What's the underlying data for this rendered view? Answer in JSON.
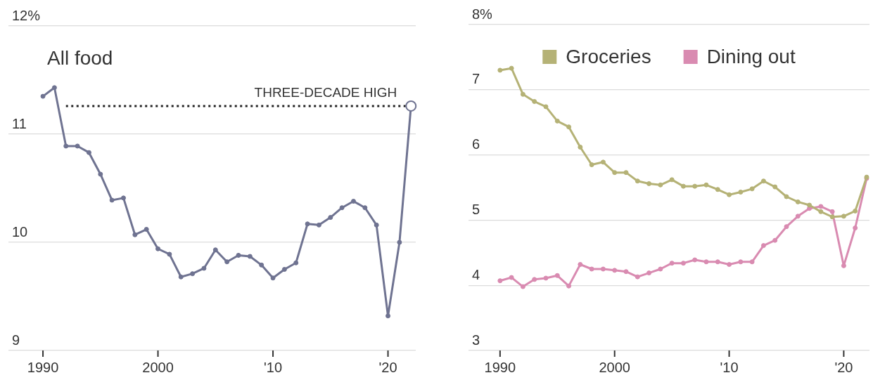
{
  "chart_data": [
    {
      "type": "line",
      "title": "All food",
      "x": [
        "1990",
        "1991",
        "1992",
        "1993",
        "1994",
        "1995",
        "1996",
        "1997",
        "1998",
        "1999",
        "2000",
        "2001",
        "2002",
        "2003",
        "2004",
        "2005",
        "2006",
        "2007",
        "2008",
        "2009",
        "2010",
        "2011",
        "2012",
        "2013",
        "2014",
        "2015",
        "2016",
        "2017",
        "2018",
        "2019",
        "2020",
        "2021",
        "2022"
      ],
      "series": [
        {
          "color": "#6f7391",
          "values": [
            11.35,
            11.43,
            10.89,
            10.89,
            10.83,
            10.63,
            10.39,
            10.41,
            10.07,
            10.12,
            9.94,
            9.89,
            9.68,
            9.71,
            9.76,
            9.93,
            9.82,
            9.88,
            9.87,
            9.79,
            9.67,
            9.75,
            9.81,
            10.17,
            10.16,
            10.23,
            10.32,
            10.38,
            10.32,
            10.16,
            9.32,
            10.0,
            11.26
          ]
        }
      ],
      "xlim": [
        "1987",
        "2022-06"
      ],
      "xticks": [
        "1990",
        "2000",
        {
          "value": "2010",
          "label": "'10"
        },
        {
          "value": "2020",
          "label": "'20"
        }
      ],
      "ylim": [
        9,
        12
      ],
      "yticks": [
        {
          "value": 12,
          "label": "12%"
        },
        11,
        10,
        9
      ],
      "grid": "y",
      "marker": "circle",
      "ref_lines": [
        {
          "axis": "y",
          "value": 11.26,
          "label": "THREE-DECADE HIGH",
          "color": "#222222",
          "line_style": "dotted"
        }
      ]
    },
    {
      "type": "line",
      "x": [
        "1990",
        "1991",
        "1992",
        "1993",
        "1994",
        "1995",
        "1996",
        "1997",
        "1998",
        "1999",
        "2000",
        "2001",
        "2002",
        "2003",
        "2004",
        "2005",
        "2006",
        "2007",
        "2008",
        "2009",
        "2010",
        "2011",
        "2012",
        "2013",
        "2014",
        "2015",
        "2016",
        "2017",
        "2018",
        "2019",
        "2020",
        "2021",
        "2022"
      ],
      "series": [
        {
          "name": "Groceries",
          "color": "#b5b276",
          "values": [
            7.3,
            7.33,
            6.93,
            6.82,
            6.74,
            6.52,
            6.43,
            6.12,
            5.85,
            5.89,
            5.73,
            5.73,
            5.6,
            5.56,
            5.54,
            5.62,
            5.52,
            5.52,
            5.54,
            5.47,
            5.39,
            5.43,
            5.48,
            5.6,
            5.51,
            5.36,
            5.28,
            5.23,
            5.13,
            5.05,
            5.06,
            5.14,
            5.66
          ]
        },
        {
          "name": "Dining out",
          "color": "#d98bb1",
          "values": [
            4.07,
            4.12,
            3.98,
            4.09,
            4.11,
            4.15,
            3.99,
            4.32,
            4.25,
            4.25,
            4.23,
            4.21,
            4.13,
            4.19,
            4.25,
            4.34,
            4.34,
            4.39,
            4.36,
            4.36,
            4.32,
            4.36,
            4.36,
            4.61,
            4.69,
            4.9,
            5.06,
            5.18,
            5.21,
            5.13,
            4.3,
            4.88,
            5.64
          ]
        }
      ],
      "xlim": [
        "1987-04",
        "2022-04"
      ],
      "xticks": [
        "1990",
        "2000",
        {
          "value": "2010",
          "label": "'10"
        },
        {
          "value": "2020",
          "label": "'20"
        }
      ],
      "ylim": [
        3,
        8
      ],
      "yticks": [
        {
          "value": 8,
          "label": "8%"
        },
        7,
        6,
        5,
        4,
        3
      ],
      "grid": "y",
      "legend": "top",
      "marker": "circle"
    }
  ]
}
